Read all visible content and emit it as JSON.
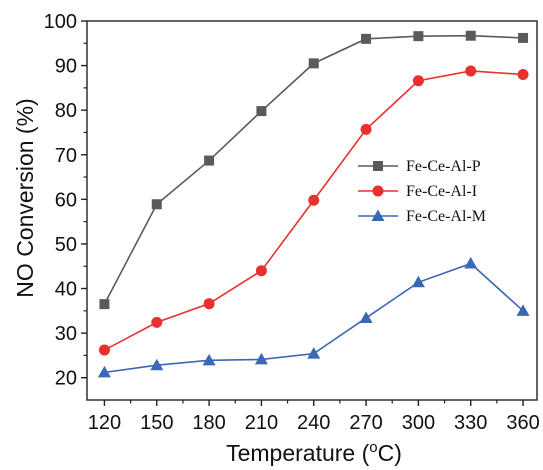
{
  "chart_data": {
    "type": "line",
    "x": [
      120,
      150,
      180,
      210,
      240,
      270,
      300,
      330,
      360
    ],
    "xlabel": "Temperature (°C)",
    "xlabel_parts": {
      "pre": "Temperature (",
      "sup": "o",
      "post": "C)"
    },
    "ylabel": "NO Conversion (%)",
    "xlim": [
      110,
      368
    ],
    "ylim": [
      15,
      100
    ],
    "xticks": [
      120,
      150,
      180,
      210,
      240,
      270,
      300,
      330,
      360
    ],
    "yticks": [
      20,
      30,
      40,
      50,
      60,
      70,
      80,
      90,
      100
    ],
    "grid": false,
    "legend_position": "center-right",
    "series": [
      {
        "name": "Fe-Ce-Al-P",
        "marker": "square",
        "color": "#5a5a5a",
        "values": [
          36.5,
          58.9,
          68.7,
          79.8,
          90.5,
          96.0,
          96.6,
          96.7,
          96.2
        ]
      },
      {
        "name": "Fe-Ce-Al-I",
        "marker": "circle",
        "color": "#e8312e",
        "values": [
          26.2,
          32.4,
          36.6,
          44.0,
          59.8,
          75.7,
          86.6,
          88.8,
          88.0
        ]
      },
      {
        "name": "Fe-Ce-Al-M",
        "marker": "triangle",
        "color": "#3a68b4",
        "values": [
          21.2,
          22.8,
          23.9,
          24.1,
          25.4,
          33.4,
          41.4,
          45.6,
          35.0
        ]
      }
    ]
  }
}
